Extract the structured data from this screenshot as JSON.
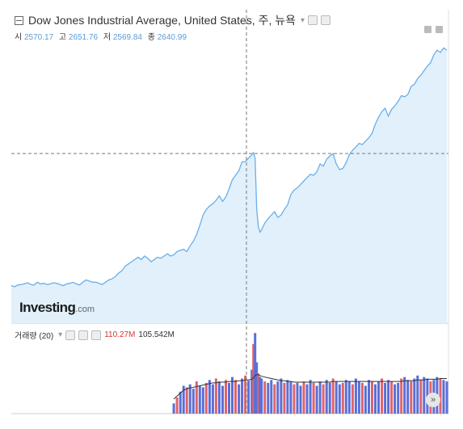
{
  "header": {
    "title": "Dow Jones Industrial Average, United States, 주, 뉴욕",
    "dropdown_icon": "caret-down-icon",
    "settings_icon": "gear-icon"
  },
  "ohlc": [
    {
      "label": "시",
      "value": "2570.17"
    },
    {
      "label": "고",
      "value": "2651.76"
    },
    {
      "label": "저",
      "value": "2569.84"
    },
    {
      "label": "종",
      "value": "2640.99"
    }
  ],
  "logo": {
    "brand": "Investing",
    "suffix": ".com"
  },
  "volume_panel": {
    "label": "거래량 (20)",
    "value_red": "110.27M",
    "value_dark": "105.542M"
  },
  "colors": {
    "price_line": "#6aaee9",
    "price_fill": "#e1f0fb",
    "volume_up": "#5b6fd6",
    "volume_down": "#e0636b",
    "volume_ma": "#333333",
    "crosshair": "#777777"
  },
  "chart_data": [
    {
      "type": "area",
      "title": "Dow Jones Industrial Average, United States, 주, 뉴욕",
      "crosshair": true,
      "ylim": [
        200,
        2700
      ],
      "x": [
        0,
        4,
        8,
        12,
        16,
        20,
        24,
        28,
        32,
        36,
        40,
        44,
        48,
        52,
        56,
        60,
        64,
        68,
        72,
        76,
        80,
        84,
        88,
        92,
        96,
        100,
        104,
        108,
        112,
        116,
        120,
        124,
        128,
        132,
        136,
        140,
        144,
        148,
        152,
        156,
        160,
        164,
        168,
        172,
        176,
        180,
        184,
        188,
        192,
        196,
        200,
        204,
        208,
        212,
        216,
        220,
        224,
        228,
        232,
        236,
        240,
        244,
        248,
        252,
        256,
        260,
        264,
        268,
        272,
        276,
        280,
        284,
        288,
        292,
        296,
        298,
        300,
        302,
        304,
        306,
        308,
        312,
        316,
        320,
        324,
        328,
        332,
        336,
        340,
        344,
        348,
        352,
        356,
        360,
        364,
        368,
        372,
        376,
        380,
        384,
        388,
        392,
        396,
        400,
        404,
        408,
        412,
        416,
        420,
        424,
        428,
        432,
        436,
        440,
        444,
        448,
        452,
        456,
        460,
        464,
        468,
        472,
        476,
        480,
        484,
        488,
        492,
        496,
        500,
        504,
        508,
        512,
        516,
        520,
        524,
        528,
        532,
        536
      ],
      "values": [
        530,
        520,
        535,
        540,
        545,
        555,
        540,
        535,
        560,
        545,
        550,
        540,
        545,
        555,
        550,
        540,
        530,
        545,
        550,
        560,
        545,
        535,
        560,
        580,
        570,
        560,
        560,
        550,
        540,
        560,
        580,
        590,
        610,
        640,
        660,
        700,
        720,
        740,
        760,
        780,
        760,
        790,
        770,
        740,
        760,
        780,
        770,
        790,
        810,
        790,
        800,
        830,
        840,
        850,
        830,
        880,
        920,
        980,
        1060,
        1150,
        1200,
        1230,
        1250,
        1280,
        1320,
        1270,
        1310,
        1380,
        1460,
        1500,
        1540,
        1620,
        1620,
        1650,
        1680,
        1700,
        1650,
        1200,
        1050,
        1000,
        1020,
        1080,
        1120,
        1150,
        1180,
        1130,
        1150,
        1200,
        1240,
        1330,
        1370,
        1390,
        1420,
        1450,
        1480,
        1510,
        1500,
        1530,
        1600,
        1580,
        1640,
        1670,
        1690,
        1600,
        1550,
        1560,
        1610,
        1680,
        1720,
        1750,
        1780,
        1770,
        1800,
        1830,
        1870,
        1950,
        2010,
        2060,
        2090,
        2020,
        2080,
        2110,
        2150,
        2200,
        2190,
        2210,
        2280,
        2300,
        2350,
        2380,
        2420,
        2460,
        2490,
        2560,
        2600,
        2580,
        2620,
        2600
      ]
    },
    {
      "type": "bar",
      "title": "거래량 (20)",
      "annotations": [
        "110.27M",
        "105.542M"
      ],
      "ylim": [
        0,
        110.27
      ],
      "x": [
        200,
        204,
        208,
        212,
        216,
        220,
        224,
        228,
        232,
        236,
        240,
        244,
        248,
        252,
        256,
        260,
        264,
        268,
        272,
        276,
        280,
        284,
        288,
        292,
        296,
        298,
        300,
        302,
        304,
        306,
        308,
        312,
        316,
        320,
        324,
        328,
        332,
        336,
        340,
        344,
        348,
        352,
        356,
        360,
        364,
        368,
        372,
        376,
        380,
        384,
        388,
        392,
        396,
        400,
        404,
        408,
        412,
        416,
        420,
        424,
        428,
        432,
        436,
        440,
        444,
        448,
        452,
        456,
        460,
        464,
        468,
        472,
        476,
        480,
        484,
        488,
        492,
        496,
        500,
        504,
        508,
        512,
        516,
        520,
        524,
        528,
        532,
        536
      ],
      "values": [
        14,
        22,
        30,
        38,
        36,
        40,
        34,
        44,
        38,
        36,
        42,
        46,
        40,
        48,
        44,
        38,
        46,
        42,
        50,
        46,
        40,
        48,
        52,
        45,
        60,
        95,
        110,
        70,
        55,
        50,
        48,
        44,
        42,
        46,
        40,
        44,
        48,
        42,
        46,
        44,
        40,
        42,
        38,
        44,
        40,
        46,
        42,
        38,
        44,
        40,
        46,
        42,
        48,
        44,
        40,
        42,
        46,
        44,
        40,
        48,
        44,
        42,
        38,
        46,
        44,
        40,
        44,
        48,
        42,
        46,
        44,
        40,
        42,
        48,
        50,
        46,
        44,
        48,
        52,
        46,
        50,
        48,
        44,
        46,
        50,
        48,
        46,
        44
      ],
      "ma": [
        20,
        24,
        28,
        32,
        34,
        35,
        36,
        37,
        38,
        39,
        40,
        41,
        42,
        42,
        43,
        43,
        43,
        44,
        44,
        44,
        45,
        45,
        46,
        46,
        47,
        49,
        52,
        53,
        53,
        52,
        51,
        50,
        49,
        48,
        47,
        46,
        45,
        45,
        44,
        44,
        43,
        43,
        43,
        43,
        43,
        43,
        43,
        43,
        43,
        43,
        43,
        43,
        44,
        44,
        44,
        44,
        44,
        44,
        44,
        44,
        44,
        44,
        44,
        44,
        44,
        44,
        44,
        44,
        44,
        44,
        44,
        44,
        44,
        44,
        45,
        45,
        45,
        45,
        46,
        46,
        46,
        47,
        47,
        47,
        47,
        48,
        48,
        48
      ]
    }
  ]
}
